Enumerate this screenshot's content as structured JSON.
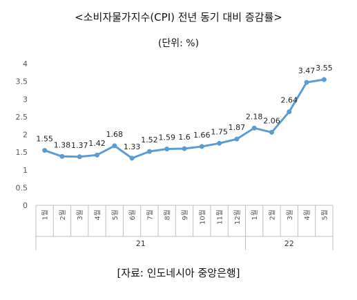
{
  "chart_data": {
    "type": "line",
    "title": "<소비자물가지수(CPI) 전년 동기 대비 증감률>",
    "subtitle": "(단위: %)",
    "source": "[자료: 인도네시아 중앙은행]",
    "month_suffix": "월",
    "x": [
      "1",
      "2",
      "3",
      "4",
      "5",
      "6",
      "7",
      "8",
      "9",
      "10",
      "11",
      "12",
      "1",
      "2",
      "3",
      "4",
      "5"
    ],
    "year_groups": [
      {
        "label": "21",
        "start": 0,
        "end": 11
      },
      {
        "label": "22",
        "start": 12,
        "end": 16
      }
    ],
    "series": [
      {
        "values": [
          1.55,
          1.38,
          1.37,
          1.42,
          1.68,
          1.33,
          1.52,
          1.59,
          1.6,
          1.66,
          1.75,
          1.87,
          2.18,
          2.06,
          2.64,
          3.47,
          3.55
        ],
        "labels": [
          "1.55",
          "1.38",
          "1.37",
          "1.42",
          "1.68",
          "1.33",
          "1.52",
          "1.59",
          "1.6",
          "1.66",
          "1.75",
          "1.87",
          "2.18",
          "2.06",
          "2.64",
          "3.47",
          "3.55"
        ]
      }
    ],
    "y_ticks": [
      "0",
      "0.5",
      "1",
      "1.5",
      "2",
      "2.5",
      "3",
      "3.5",
      "4"
    ],
    "ylim": [
      0,
      4
    ],
    "grid": false,
    "legend": "none",
    "line_color": "#5b9bd5"
  }
}
